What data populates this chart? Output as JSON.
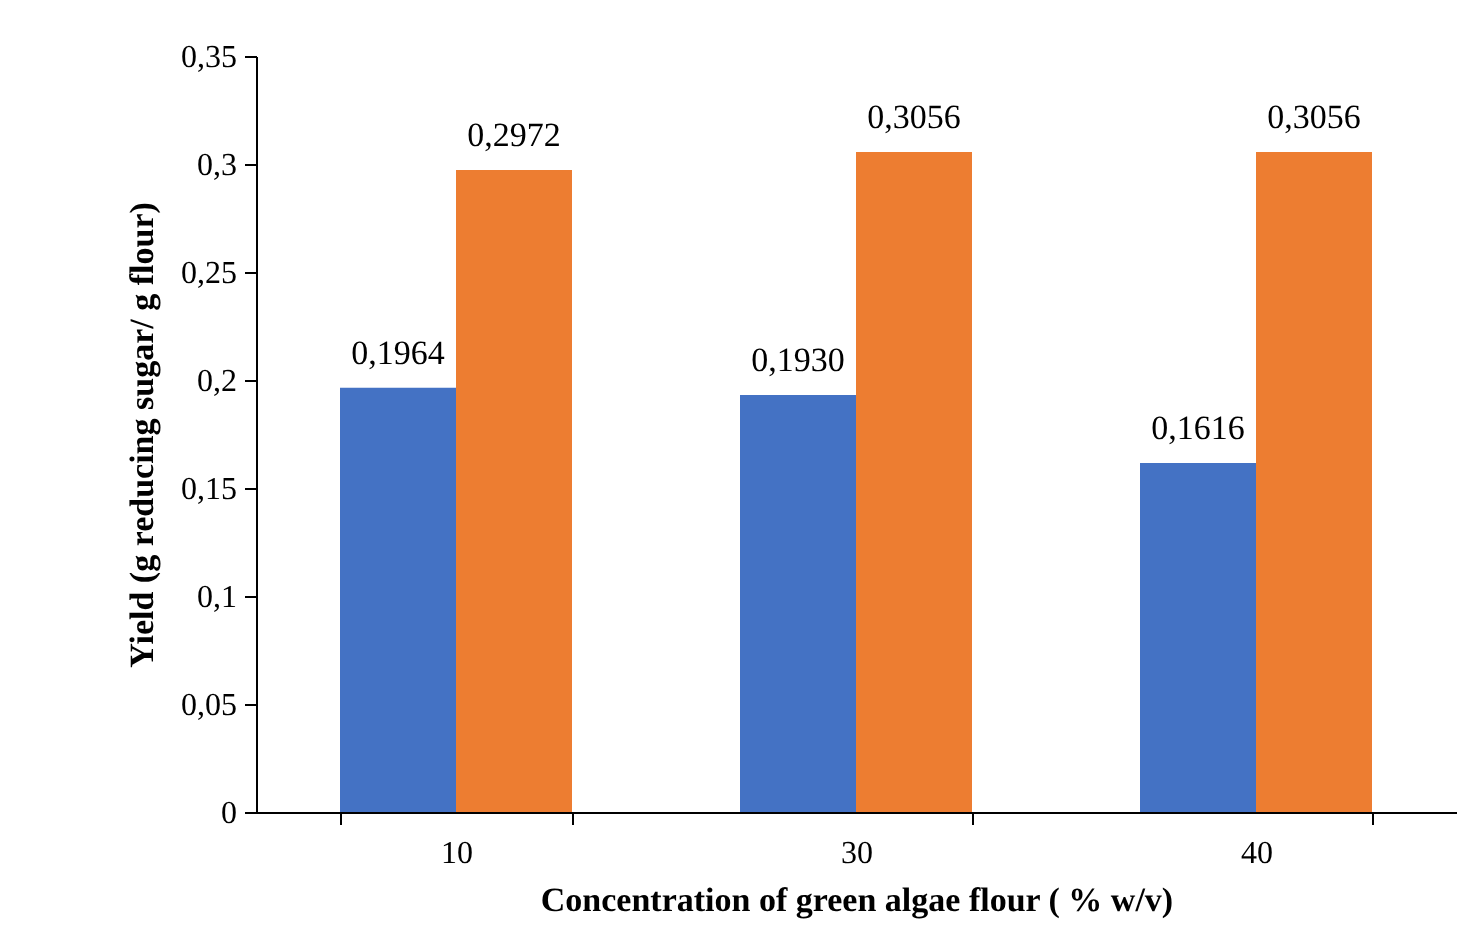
{
  "chart_data": {
    "type": "bar",
    "xlabel": "Concentration of green algae flour ( % w/v)",
    "ylabel": "Yield (g reducing sugar/ g flour)",
    "categories": [
      "10",
      "30",
      "40"
    ],
    "series": [
      {
        "color": "#4472c4",
        "values": [
          0.1964,
          0.193,
          0.1616
        ],
        "value_labels": [
          "0,1964",
          "0,1930",
          "0,1616"
        ]
      },
      {
        "color": "#ed7d31",
        "values": [
          0.2972,
          0.3056,
          0.3056
        ],
        "value_labels": [
          "0,2972",
          "0,3056",
          "0,3056"
        ]
      }
    ],
    "ylim": [
      0,
      0.35
    ],
    "yticks": [
      0,
      {
        "value": 0.05,
        "label": "0,05"
      },
      {
        "value": 0.1,
        "label": "0,1"
      },
      {
        "value": 0.15,
        "label": "0,15"
      },
      {
        "value": 0.2,
        "label": "0,2"
      },
      {
        "value": 0.25,
        "label": "0,25"
      },
      {
        "value": 0.3,
        "label": "0,3"
      },
      {
        "value": 0.35,
        "label": "0,35"
      }
    ],
    "grid": false
  }
}
